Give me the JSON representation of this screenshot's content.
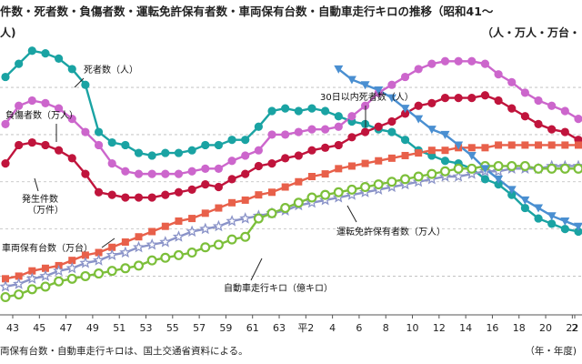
{
  "header": {
    "title": "件数・死者数・負傷者数・運転免許保有者数・車両保有台数・自動車走行キロの推移（昭和41〜",
    "unit_left": "人)",
    "unit_right": "（人・万人・万台・"
  },
  "footer": {
    "note": "両保有台数・自動車走行キロは、国土交通省資料による。",
    "x_unit": "（年・年度)"
  },
  "chart_data": {
    "type": "line",
    "x": [
      "43",
      "44",
      "45",
      "46",
      "47",
      "48",
      "49",
      "50",
      "51",
      "52",
      "53",
      "54",
      "55",
      "56",
      "57",
      "58",
      "59",
      "60",
      "61",
      "62",
      "63",
      "平元",
      "平2",
      "3",
      "4",
      "5",
      "6",
      "7",
      "8",
      "9",
      "10",
      "11",
      "12",
      "13",
      "14",
      "15",
      "16",
      "17",
      "18",
      "19",
      "20",
      "21",
      "22",
      "23"
    ],
    "x_tick_labels": [
      "43",
      "45",
      "47",
      "49",
      "51",
      "53",
      "55",
      "57",
      "59",
      "61",
      "63",
      "平2",
      "4",
      "6",
      "8",
      "10",
      "12",
      "14",
      "16",
      "18",
      "20",
      "22",
      "2"
    ],
    "ylim": [
      0,
      100
    ],
    "grid": "horizontal dashed",
    "series": [
      {
        "name": "死者数（人）",
        "color": "#1aa3a3",
        "marker": "circle",
        "values": [
          88,
          93,
          98,
          97,
          95,
          91,
          85,
          67,
          63,
          62,
          59,
          58,
          59,
          59,
          60,
          62,
          62,
          64,
          64,
          69,
          75,
          76,
          75,
          76,
          75,
          73,
          71,
          70,
          68,
          67,
          64,
          60,
          58,
          56,
          55,
          53,
          49,
          47,
          43,
          38,
          34,
          32,
          30,
          29
        ]
      },
      {
        "name": "負傷者数（万人）",
        "color": "#cc66cc",
        "marker": "circle",
        "values": [
          70,
          77,
          79,
          78,
          76,
          72,
          67,
          62,
          55,
          52,
          51,
          51,
          51,
          51,
          52,
          53,
          53,
          56,
          58,
          60,
          66,
          66,
          67,
          68,
          68,
          69,
          73,
          77,
          82,
          85,
          88,
          91,
          93,
          94,
          94,
          94,
          93,
          89,
          86,
          82,
          79,
          77,
          75,
          72
        ]
      },
      {
        "name": "発生件数（万件）",
        "color": "#c0143c",
        "marker": "circle",
        "values": [
          55,
          62,
          63,
          62,
          60,
          57,
          51,
          44,
          43,
          42,
          42,
          42,
          43,
          44,
          45,
          47,
          46,
          49,
          51,
          54,
          55,
          57,
          58,
          60,
          61,
          62,
          65,
          67,
          69,
          71,
          74,
          77,
          78,
          80,
          80,
          80,
          81,
          79,
          76,
          73,
          70,
          68,
          67,
          64
        ]
      },
      {
        "name": "車両保有台数（万台）",
        "color": "#e8604a",
        "marker": "square",
        "values": [
          11,
          12,
          14,
          15,
          16,
          18,
          20,
          21,
          23,
          25,
          27,
          29,
          31,
          33,
          34,
          36,
          38,
          40,
          41,
          43,
          44,
          46,
          48,
          50,
          51,
          53,
          54,
          55,
          56,
          57,
          58,
          59,
          60,
          60,
          61,
          61,
          61,
          62,
          62,
          62,
          62,
          62,
          62,
          62
        ]
      },
      {
        "name": "運転免許保有者数（万人）",
        "color": "#8a93c8",
        "marker": "star",
        "values": [
          8,
          9,
          11,
          12,
          14,
          15,
          17,
          18,
          20,
          21,
          23,
          24,
          25,
          27,
          29,
          30,
          31,
          33,
          34,
          35,
          36,
          37,
          39,
          40,
          41,
          42,
          43,
          44,
          45,
          46,
          47,
          48,
          49,
          50,
          50,
          51,
          52,
          52,
          53,
          53,
          53,
          54,
          54,
          54
        ]
      },
      {
        "name": "自動車走行キロ（億キロ）",
        "color": "#7cbf3a",
        "marker": "ring",
        "values": [
          4,
          5,
          7,
          8,
          10,
          11,
          12,
          13,
          14,
          15,
          16,
          18,
          19,
          20,
          21,
          23,
          24,
          26,
          27,
          34,
          36,
          38,
          40,
          42,
          43,
          44,
          45,
          46,
          47,
          48,
          49,
          50,
          51,
          52,
          53,
          53,
          54,
          54,
          54,
          54,
          53,
          53,
          53,
          53
        ]
      },
      {
        "name": "30日以内死者数（人）",
        "color": "#4a8fd1",
        "marker": "triangle-down",
        "values": [
          null,
          null,
          null,
          null,
          null,
          null,
          null,
          null,
          null,
          null,
          null,
          null,
          null,
          null,
          null,
          null,
          null,
          null,
          null,
          null,
          null,
          null,
          null,
          null,
          null,
          91,
          87,
          85,
          83,
          80,
          76,
          72,
          68,
          66,
          62,
          58,
          53,
          49,
          45,
          41,
          38,
          35,
          33,
          31
        ]
      }
    ],
    "annotations": [
      {
        "text": "死者数（人）",
        "target": "死者数（人）"
      },
      {
        "text": "負傷者数（万人）",
        "target": "負傷者数（万人）"
      },
      {
        "text": "発生件数\n（万件）",
        "target": "発生件数（万件）"
      },
      {
        "text": "車両保有台数（万台）",
        "target": "車両保有台数（万台）"
      },
      {
        "text": "自動車走行キロ（億キロ）",
        "target": "自動車走行キロ（億キロ）"
      },
      {
        "text": "30日以内死者数（人）",
        "target": "30日以内死者数（人）"
      },
      {
        "text": "運転免許保有者数（万人）",
        "target": "運転免許保有者数（万人）"
      }
    ]
  }
}
